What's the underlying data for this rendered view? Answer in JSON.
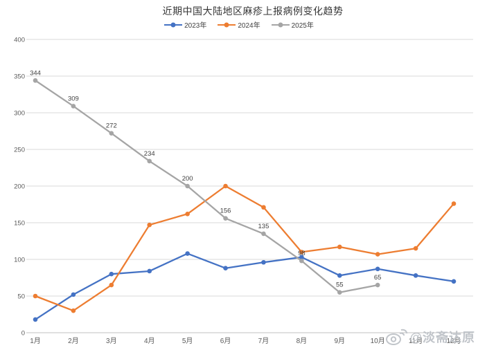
{
  "chart_data": {
    "type": "line",
    "title": "近期中国大陆地区麻疹上报病例变化趋势",
    "categories": [
      "1月",
      "2月",
      "3月",
      "4月",
      "5月",
      "6月",
      "7月",
      "8月",
      "9月",
      "10月",
      "11月",
      "12月"
    ],
    "series": [
      {
        "name": "2023年",
        "color": "#4472C4",
        "data_labels": false,
        "values": [
          18,
          52,
          80,
          84,
          108,
          88,
          96,
          103,
          78,
          87,
          78,
          70
        ]
      },
      {
        "name": "2024年",
        "color": "#ED7D31",
        "data_labels": false,
        "values": [
          50,
          30,
          65,
          147,
          162,
          200,
          171,
          110,
          117,
          107,
          115,
          176
        ]
      },
      {
        "name": "2025年",
        "color": "#A5A5A5",
        "data_labels": true,
        "values": [
          344,
          309,
          272,
          234,
          200,
          156,
          135,
          98,
          55,
          65
        ]
      }
    ],
    "ylim": [
      0,
      400
    ],
    "y_ticks": [
      0,
      50,
      100,
      150,
      200,
      250,
      300,
      350,
      400
    ],
    "grid": "horizontal",
    "legend_position": "top",
    "axis_text_color": "#595959",
    "data_label_color": "#404040",
    "gridline_color": "#d9d9d9",
    "baseline_color": "#c0c0c0"
  },
  "watermark": {
    "handle": "@淡斋达原",
    "icon": "weibo-logo"
  }
}
